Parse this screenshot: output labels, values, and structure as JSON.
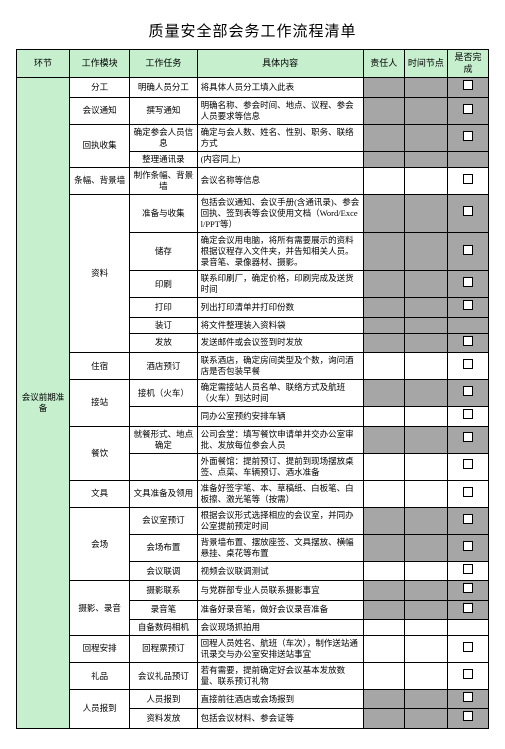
{
  "title": "质量安全部会务工作流程清单",
  "headers": [
    "环节",
    "工作模块",
    "工作任务",
    "具体内容",
    "责任人",
    "时间节点",
    "是否完成"
  ],
  "rows": [
    {
      "stage": "会议前期准备",
      "module": "分工",
      "task": "明确人员分工",
      "detail": "将具体人员分工填入此表",
      "grey": true,
      "done": true
    },
    {
      "module": "会议通知",
      "task": "撰写通知",
      "detail": "明确名称、参会时间、地点、议程、参会人员要求等信息",
      "grey": true,
      "done": true
    },
    {
      "module_rs": 2,
      "module": "回执收集",
      "task": "确定参会人员信息",
      "detail": "确定与会人数、姓名、性别、职务、联络方式",
      "grey": true,
      "done": true
    },
    {
      "task": "整理通讯录",
      "detail": "(内容同上)",
      "grey": true,
      "done": false
    },
    {
      "module": "条幅、背景墙",
      "task": "制作条幅、背景墙",
      "detail": "会议名称等信息",
      "grey": false,
      "done": true
    },
    {
      "module_rs": 6,
      "module": "资料",
      "task": "准备与收集",
      "detail": "包括会议通知、会议手册(含通讯录)、参会回执、签到表等会议使用文档（Word/Excel/PPT等）",
      "grey": true,
      "done": true
    },
    {
      "task": "储存",
      "detail": "确定会议用电脑，将所有需要展示的资料根据议程存入文件夹，并告知相关人员。录音笔、录像器材、摄影。",
      "grey": true,
      "done": true
    },
    {
      "task": "印刷",
      "detail": "联系印刷厂，确定价格，印刷完成及送货时间",
      "grey": true,
      "done": true
    },
    {
      "task": "打印",
      "detail": "列出打印清单并打印份数",
      "grey": true,
      "done": true
    },
    {
      "task": "装订",
      "detail": "将文件整理装入资料袋",
      "grey": true,
      "done": false
    },
    {
      "task": "发放",
      "detail": "发送邮件或会议签到时发放",
      "grey": true,
      "done": true
    },
    {
      "module": "住宿",
      "task": "酒店预订",
      "detail": "联系酒店，确定房间类型及个数，询问酒店是否包装早餐",
      "grey": false,
      "done": true
    },
    {
      "module_rs": 2,
      "module": "接站",
      "task": "接机（火车）",
      "detail": "确定需接站人员名单、联络方式及航班（火车）到达时间",
      "grey": true,
      "done": true
    },
    {
      "task": "",
      "detail": "同办公室预约安排车辆",
      "grey": false,
      "done": true
    },
    {
      "module_rs": 2,
      "module": "餐饮",
      "task": "就餐形式、地点确定",
      "detail": "公司会堂：填写餐饮申请单并交办公室审批、发放每位参会人员",
      "grey": true,
      "done": true
    },
    {
      "task": "",
      "detail": "外面餐馆：提前预订、提前到现场摆放桌签、点菜、车辆预订、酒水准备",
      "grey": false,
      "done": true
    },
    {
      "module": "文具",
      "task": "文具准备及领用",
      "detail": "准备好签字笔、本、草稿纸、白板笔、白板擦、激光笔等（按需）",
      "grey": false,
      "done": true
    },
    {
      "module_rs": 3,
      "module": "会场",
      "task": "会议室预订",
      "detail": "根据会议形式选择相应的会议室，并同办公室提前预定时间",
      "grey": true,
      "done": true
    },
    {
      "task": "会场布置",
      "detail": "背景墙布置、摆放座签、文具摆放、横幅悬挂、桌花等布置",
      "grey": true,
      "done": true
    },
    {
      "task": "会议联调",
      "detail": "视频会议联调测试",
      "grey": false,
      "done": true
    },
    {
      "module_rs": 3,
      "module": "摄影、录音",
      "task": "摄影联系",
      "detail": "与党群部专业人员联系摄影事宜",
      "grey": true,
      "done": true
    },
    {
      "task": "录音笔",
      "detail": "准备好录音笔，做好会议录音准备",
      "grey": true,
      "done": true
    },
    {
      "task": "自备数码相机",
      "detail": "会议现场抓拍用",
      "grey": false,
      "done": false
    },
    {
      "module": "回程安排",
      "task": "回程票预订",
      "detail": "回程人员姓名、航班（车次），制作送站通讯录交与办公室安排送站事宜",
      "grey": false,
      "done": true
    },
    {
      "module": "礼品",
      "task": "会议礼品预订",
      "detail": "若有需要，提前确定好会议基本发放数量、联系预订礼物",
      "grey": false,
      "done": true
    },
    {
      "module_rs": 2,
      "module": "人员报到",
      "task": "人员报到",
      "detail": "直接前往酒店或会场报到",
      "grey": true,
      "done": true
    },
    {
      "task": "资料发放",
      "detail": "包括会议材料、参会证等",
      "grey": true,
      "done": true
    }
  ]
}
